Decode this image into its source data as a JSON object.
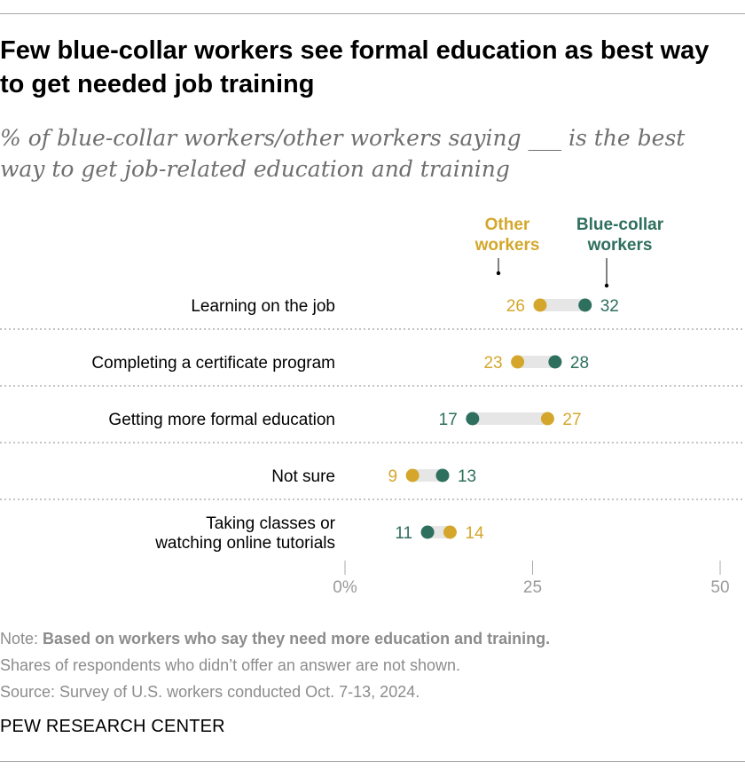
{
  "header": {
    "title": "Few blue-collar workers see formal education as best way to get needed job training",
    "subtitle": "% of blue-collar workers/other workers saying ___ is the best way to get job-related education and training"
  },
  "colors": {
    "other": "#d4a72c",
    "blue_collar": "#2e6f5e",
    "bar": "#e6e6e6",
    "divider": "#a0a0a0",
    "axis": "#aaaaaa"
  },
  "chart_data": {
    "type": "dot",
    "categories": [
      "Learning on the job",
      "Completing a certificate program",
      "Getting more formal education",
      "Not sure",
      "Taking classes or watching online tutorials"
    ],
    "series": [
      {
        "name": "Other workers",
        "values": [
          26,
          23,
          27,
          9,
          14
        ]
      },
      {
        "name": "Blue-collar workers",
        "values": [
          32,
          28,
          17,
          13,
          11
        ]
      }
    ],
    "xlim": [
      0,
      50
    ],
    "ticks": [
      "0%",
      "25",
      "50"
    ],
    "legend_labels": {
      "other": [
        "Other",
        "workers"
      ],
      "blue_collar": [
        "Blue-collar",
        "workers"
      ]
    }
  },
  "footer": {
    "note_prefix": "Note: ",
    "note_bold": "Based on workers who say they need more education and training.",
    "note_line2": "Shares of respondents who didn’t offer an answer are not shown.",
    "source": "Source: Survey of U.S. workers conducted Oct. 7-13, 2024.",
    "brand": "PEW RESEARCH CENTER"
  }
}
